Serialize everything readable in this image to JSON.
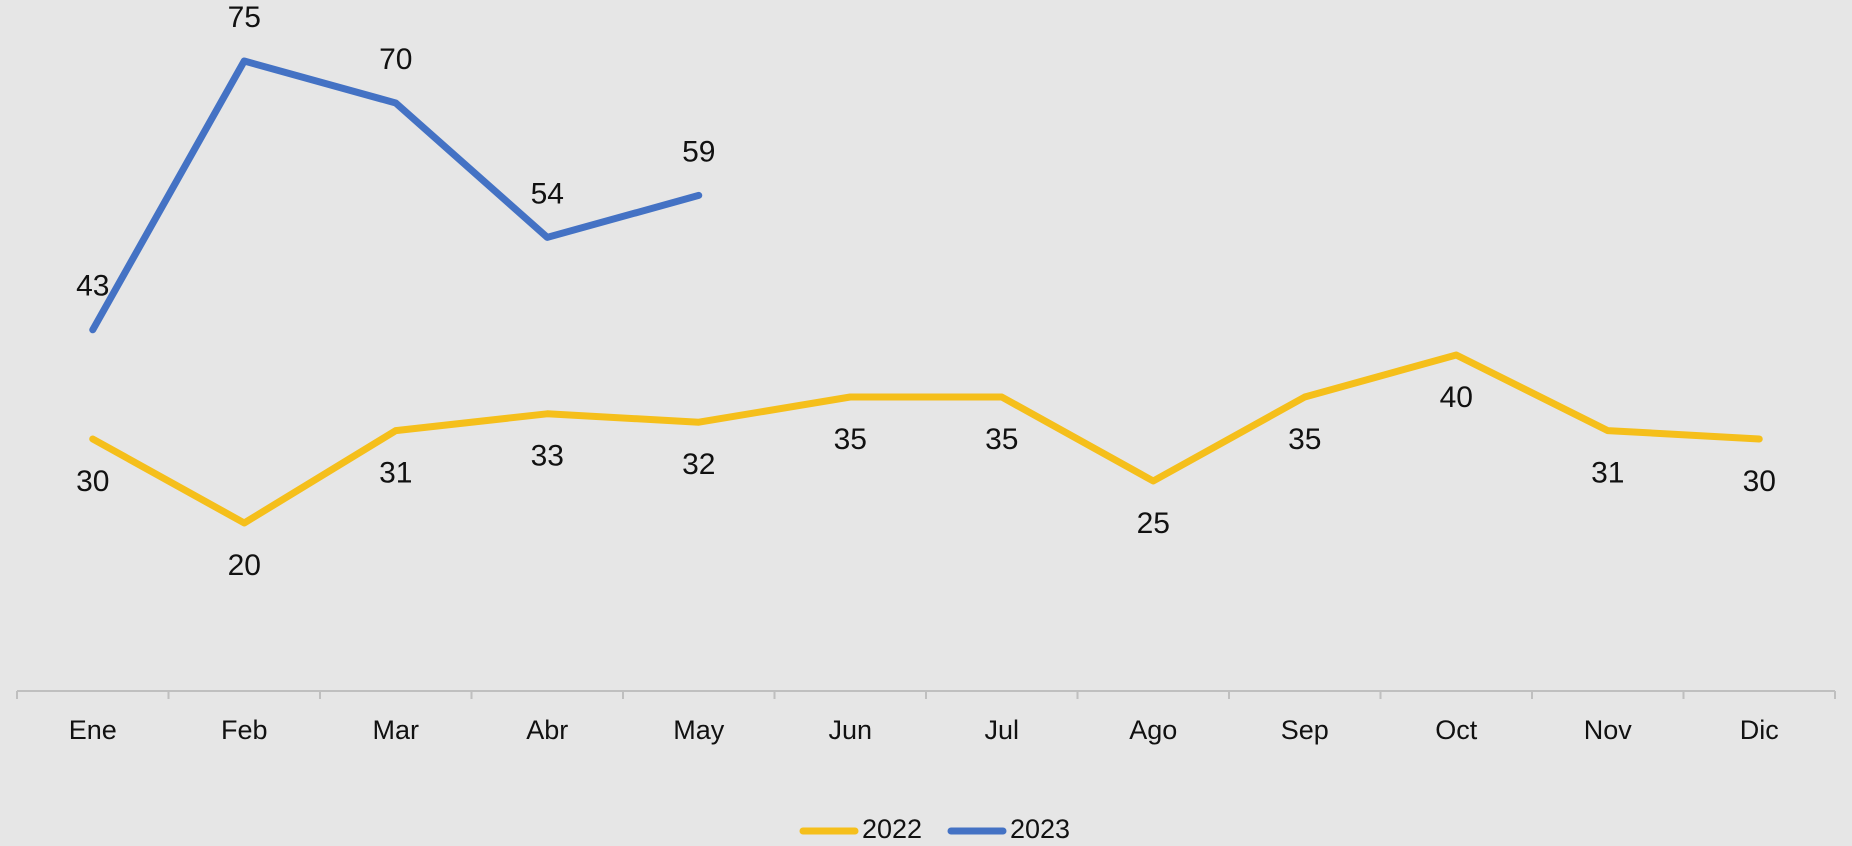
{
  "chart_data": {
    "type": "line",
    "categories": [
      "Ene",
      "Feb",
      "Mar",
      "Abr",
      "May",
      "Jun",
      "Jul",
      "Ago",
      "Sep",
      "Oct",
      "Nov",
      "Dic"
    ],
    "series": [
      {
        "name": "2022",
        "color": "#f5bf1b",
        "values": [
          30,
          20,
          31,
          33,
          32,
          35,
          35,
          25,
          35,
          40,
          31,
          30
        ]
      },
      {
        "name": "2023",
        "color": "#4472c4",
        "values": [
          43,
          75,
          70,
          54,
          59,
          null,
          null,
          null,
          null,
          null,
          null,
          null
        ]
      }
    ]
  }
}
